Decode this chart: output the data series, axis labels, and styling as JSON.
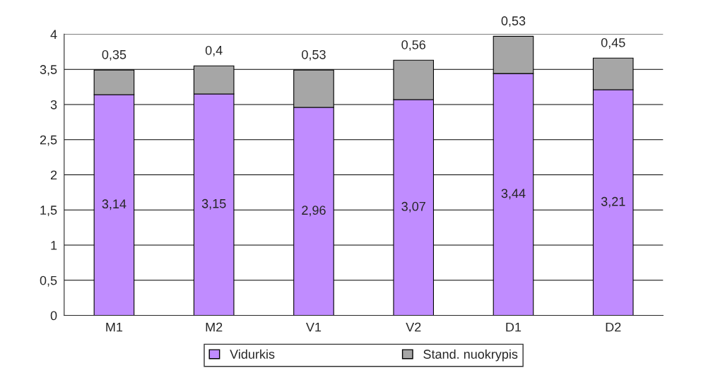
{
  "chart_data": {
    "type": "bar",
    "stacked": true,
    "categories": [
      "M1",
      "M2",
      "V1",
      "V2",
      "D1",
      "D2"
    ],
    "series": [
      {
        "name": "Vidurkis",
        "color": "#c08cff",
        "values": [
          3.14,
          3.15,
          2.96,
          3.07,
          3.44,
          3.21
        ],
        "value_labels": [
          "3,14",
          "3,15",
          "2,96",
          "3,07",
          "3,44",
          "3,21"
        ]
      },
      {
        "name": "Stand. nuokrypis",
        "color": "#a6a6a6",
        "values": [
          0.35,
          0.4,
          0.53,
          0.56,
          0.53,
          0.45
        ],
        "value_labels": [
          "0,35",
          "0,4",
          "0,53",
          "0,56",
          "0,53",
          "0,45"
        ]
      }
    ],
    "ylim": [
      0,
      4
    ],
    "yticks": [
      0,
      {
        "value": 0.5,
        "label": "0,5"
      },
      1,
      {
        "value": 1.5,
        "label": "1,5"
      },
      2,
      {
        "value": 2.5,
        "label": "2,5"
      },
      3,
      {
        "value": 3.5,
        "label": "3,5"
      },
      4
    ],
    "grid": "y",
    "legend": "bottom"
  }
}
